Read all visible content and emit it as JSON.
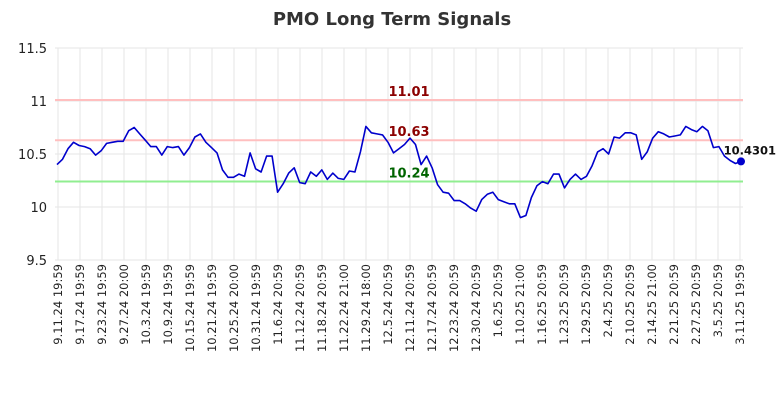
{
  "chart_data": {
    "type": "line",
    "title": "PMO Long Term Signals",
    "xlabel": "",
    "ylabel": "",
    "ylim": [
      9.5,
      11.5
    ],
    "yticks": [
      "9.5",
      "10",
      "10.5",
      "11",
      "11.5"
    ],
    "xticks": [
      "9.11.24 19:59",
      "9.17.24 19:59",
      "9.23.24 19:59",
      "9.27.24 20:00",
      "10.3.24 19:59",
      "10.9.24 19:59",
      "10.15.24 19:59",
      "10.21.24 19:59",
      "10.25.24 20:00",
      "10.31.24 19:59",
      "11.6.24 20:59",
      "11.12.24 20:59",
      "11.18.24 20:59",
      "11.22.24 21:00",
      "11.29.24 18:00",
      "12.5.24 20:59",
      "12.11.24 20:59",
      "12.17.24 20:59",
      "12.23.24 20:59",
      "12.30.24 20:59",
      "1.6.25 20:59",
      "1.10.25 21:00",
      "1.16.25 20:59",
      "1.23.25 20:59",
      "1.29.25 20:59",
      "2.4.25 20:59",
      "2.10.25 20:59",
      "2.14.25 21:00",
      "2.21.25 20:59",
      "2.27.25 20:59",
      "3.5.25 20:59",
      "3.11.25 19:59"
    ],
    "grid": true,
    "horizontal_lines": [
      {
        "label": "11.01",
        "value": 11.01,
        "color": "#ffbfbf",
        "label_color": "#8b0000"
      },
      {
        "label": "10.63",
        "value": 10.63,
        "color": "#ffbfbf",
        "label_color": "#8b0000"
      },
      {
        "label": "10.24",
        "value": 10.24,
        "color": "#90ee90",
        "label_color": "#006400"
      }
    ],
    "series": [
      {
        "color": "#0000cc",
        "values": [
          10.4,
          10.45,
          10.55,
          10.61,
          10.58,
          10.57,
          10.55,
          10.49,
          10.53,
          10.6,
          10.61,
          10.62,
          10.62,
          10.72,
          10.75,
          10.69,
          10.63,
          10.57,
          10.57,
          10.49,
          10.57,
          10.56,
          10.57,
          10.49,
          10.56,
          10.66,
          10.69,
          10.61,
          10.56,
          10.51,
          10.35,
          10.28,
          10.28,
          10.31,
          10.29,
          10.51,
          10.36,
          10.33,
          10.48,
          10.48,
          10.14,
          10.22,
          10.32,
          10.37,
          10.23,
          10.22,
          10.33,
          10.29,
          10.35,
          10.26,
          10.32,
          10.27,
          10.26,
          10.34,
          10.33,
          10.52,
          10.76,
          10.7,
          10.69,
          10.68,
          10.61,
          10.51,
          10.55,
          10.59,
          10.65,
          10.59,
          10.4,
          10.48,
          10.37,
          10.21,
          10.14,
          10.13,
          10.06,
          10.06,
          10.03,
          9.99,
          9.96,
          10.07,
          10.12,
          10.14,
          10.07,
          10.05,
          10.03,
          10.03,
          9.9,
          9.92,
          10.09,
          10.2,
          10.24,
          10.22,
          10.31,
          10.31,
          10.18,
          10.26,
          10.31,
          10.26,
          10.29,
          10.39,
          10.52,
          10.55,
          10.5,
          10.66,
          10.65,
          10.7,
          10.7,
          10.68,
          10.45,
          10.52,
          10.65,
          10.71,
          10.69,
          10.66,
          10.67,
          10.68,
          10.76,
          10.73,
          10.71,
          10.76,
          10.72,
          10.56,
          10.57,
          10.48,
          10.44,
          10.41,
          10.43
        ],
        "last_value_label": "10.4301"
      }
    ]
  }
}
